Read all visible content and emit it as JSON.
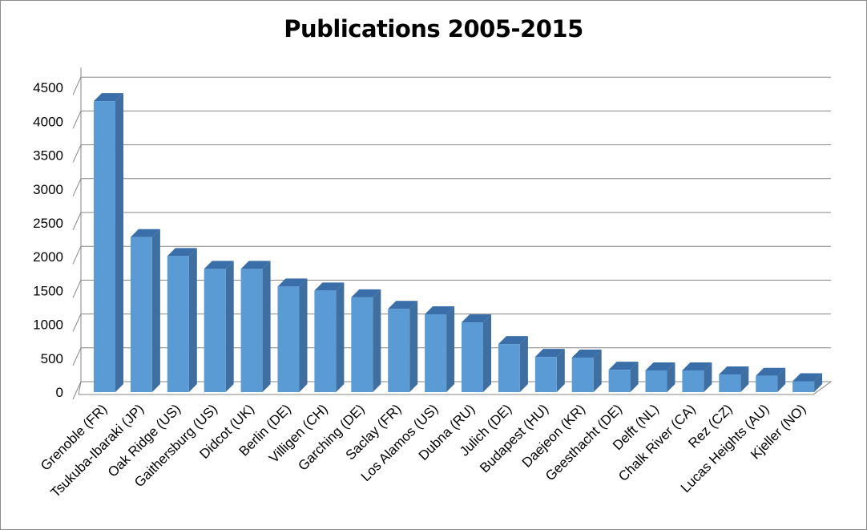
{
  "chart_data": {
    "type": "bar",
    "title": "Publications 2005-2015",
    "xlabel": "",
    "ylabel": "",
    "ylim": [
      0,
      4500
    ],
    "yticks": [
      0,
      500,
      1000,
      1500,
      2000,
      2500,
      3000,
      3500,
      4000,
      4500
    ],
    "grid": true,
    "legend": "none",
    "categories": [
      "Grenoble (FR)",
      "Tsukuba-Ibaraki (JP)",
      "Oak Ridge (US)",
      "Gaithersburg (US)",
      "Didcot (UK)",
      "Berlin (DE)",
      "Villigen (CH)",
      "Garching (DE)",
      "Saclay (FR)",
      "Los Alamos (US)",
      "Dubna (RU)",
      "Julich (DE)",
      "Budapest (HU)",
      "Daejeon (KR)",
      "Geesthacht (DE)",
      "Delft (NL)",
      "Chalk River (CA)",
      "Rez (CZ)",
      "Lucas Heights (AU)",
      "Kjeller (NO)"
    ],
    "series": [
      {
        "values": [
          4300,
          2290,
          2010,
          1820,
          1820,
          1560,
          1500,
          1400,
          1230,
          1150,
          1030,
          710,
          520,
          510,
          330,
          320,
          320,
          260,
          240,
          160
        ]
      }
    ],
    "colors": {
      "bar_front": "#5b9bd5",
      "bar_side": "#3f6fa0",
      "bar_top": "#3a6ea8",
      "grid": "#868686"
    }
  }
}
